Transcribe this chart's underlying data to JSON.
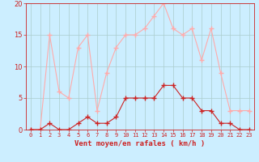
{
  "hours": [
    0,
    1,
    2,
    3,
    4,
    5,
    6,
    7,
    8,
    9,
    10,
    11,
    12,
    13,
    14,
    15,
    16,
    17,
    18,
    19,
    20,
    21,
    22,
    23
  ],
  "wind_avg": [
    0,
    0,
    1,
    0,
    0,
    1,
    2,
    1,
    1,
    2,
    5,
    5,
    5,
    5,
    7,
    7,
    5,
    5,
    3,
    3,
    1,
    1,
    0,
    0
  ],
  "wind_gust": [
    0,
    0,
    15,
    6,
    5,
    13,
    15,
    3,
    9,
    13,
    15,
    15,
    16,
    18,
    20,
    16,
    15,
    16,
    11,
    16,
    9,
    3,
    3,
    3
  ],
  "avg_color": "#cc2222",
  "gust_color": "#ffaaaa",
  "bg_color": "#cceeff",
  "grid_color": "#aacccc",
  "xlabel": "Vent moyen/en rafales ( km/h )",
  "ylim": [
    0,
    20
  ],
  "yticks": [
    0,
    5,
    10,
    15,
    20
  ],
  "xlabel_color": "#cc2222",
  "tick_color": "#cc2222",
  "marker": "+"
}
